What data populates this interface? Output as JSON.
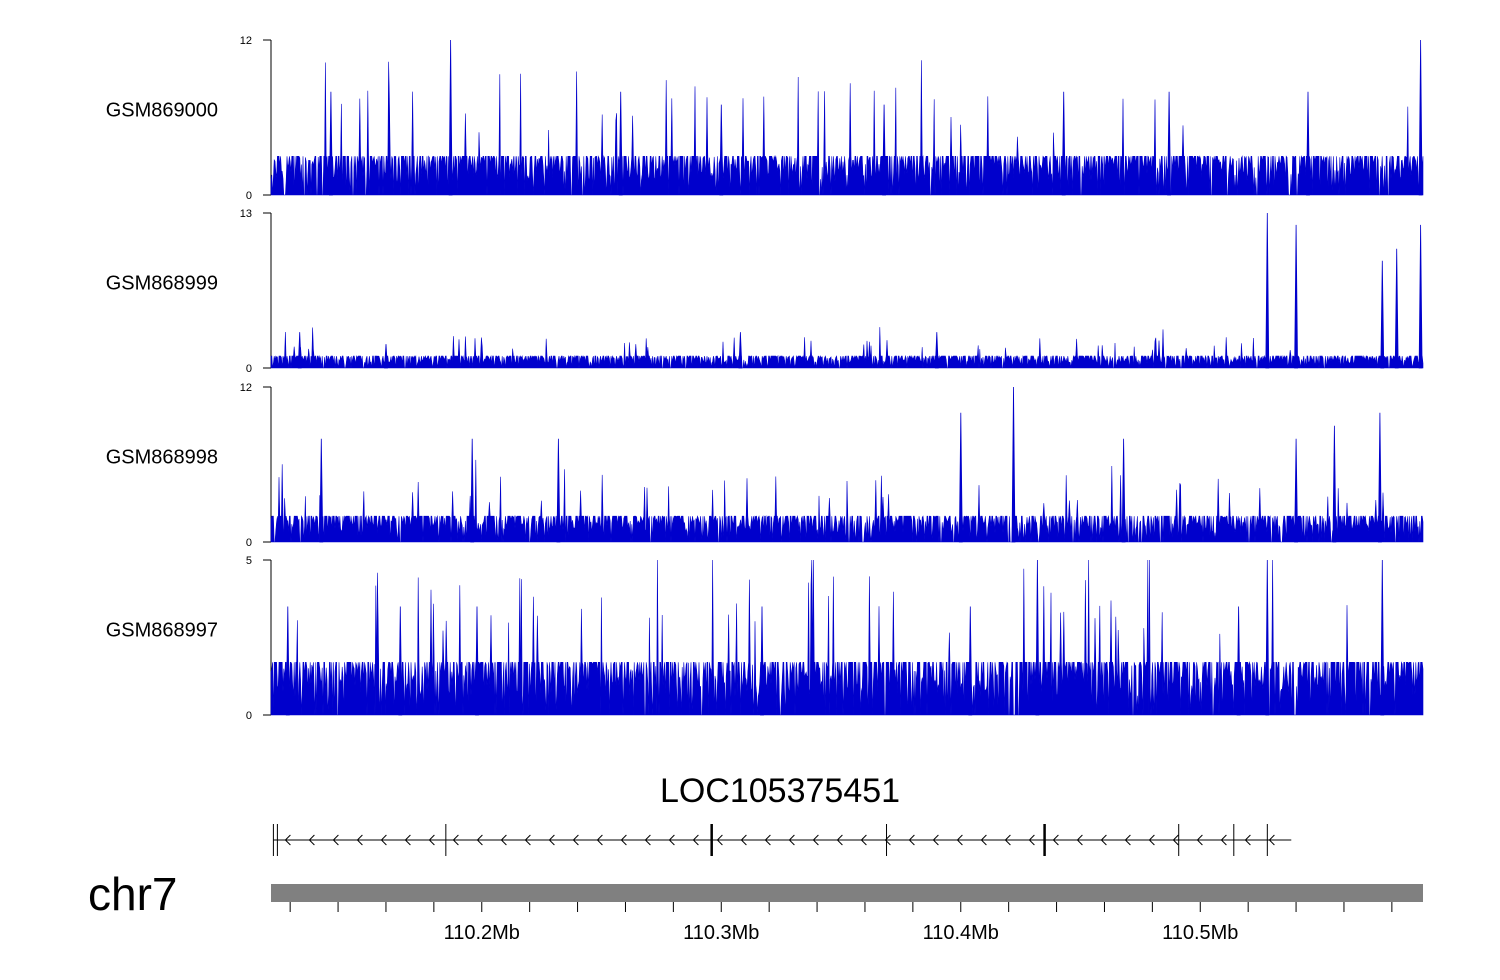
{
  "chart_data": {
    "type": "area",
    "title": "",
    "chromosome": "chr7",
    "genome_axis": {
      "range_mb": [
        110.112,
        110.593
      ],
      "tick_labels": [
        "110.2Mb",
        "110.3Mb",
        "110.4Mb",
        "110.5Mb"
      ],
      "tick_values_mb": [
        110.2,
        110.3,
        110.4,
        110.5
      ],
      "minor_tick_step_mb": 0.02
    },
    "tracks": [
      {
        "name": "GSM869000",
        "ymax_label": "12",
        "ymin_label": "0",
        "ylim": [
          0,
          12
        ],
        "baseline": 3,
        "color": "#0000cc",
        "peaks": [
          [
            110.137,
            8
          ],
          [
            110.187,
            12
          ],
          [
            110.258,
            8
          ],
          [
            110.3,
            7
          ],
          [
            110.368,
            7
          ],
          [
            110.443,
            8
          ],
          [
            110.487,
            8
          ],
          [
            110.545,
            8
          ],
          [
            110.592,
            12
          ]
        ]
      },
      {
        "name": "GSM868999",
        "ymax_label": "13",
        "ymin_label": "0",
        "ylim": [
          0,
          13
        ],
        "baseline": 1,
        "color": "#0000cc",
        "peaks": [
          [
            110.124,
            3
          ],
          [
            110.16,
            2
          ],
          [
            110.308,
            3
          ],
          [
            110.39,
            3
          ],
          [
            110.528,
            13
          ],
          [
            110.54,
            12
          ],
          [
            110.576,
            9
          ],
          [
            110.582,
            10
          ],
          [
            110.592,
            12
          ]
        ]
      },
      {
        "name": "GSM868998",
        "ymax_label": "12",
        "ymin_label": "0",
        "ylim": [
          0,
          12
        ],
        "baseline": 2,
        "color": "#0000cc",
        "peaks": [
          [
            110.133,
            8
          ],
          [
            110.196,
            8
          ],
          [
            110.232,
            8
          ],
          [
            110.4,
            10
          ],
          [
            110.422,
            12
          ],
          [
            110.468,
            8
          ],
          [
            110.54,
            8
          ],
          [
            110.556,
            9
          ],
          [
            110.575,
            10
          ]
        ]
      },
      {
        "name": "GSM868997",
        "ymax_label": "5",
        "ymin_label": "0",
        "ylim": [
          0,
          5
        ],
        "baseline": 1.7,
        "color": "#0000cc",
        "peaks": [
          [
            110.119,
            3.5
          ],
          [
            110.166,
            3.5
          ],
          [
            110.198,
            3.5
          ],
          [
            110.317,
            3.5
          ],
          [
            110.404,
            3.5
          ],
          [
            110.432,
            5
          ],
          [
            110.516,
            3.5
          ],
          [
            110.528,
            5
          ],
          [
            110.576,
            5
          ]
        ]
      }
    ],
    "gene": {
      "name": "LOC105375451",
      "strand": "-",
      "start_mb": 110.113,
      "end_mb": 110.538,
      "exon_positions_mb": [
        110.113,
        110.185,
        110.296,
        110.369,
        110.435,
        110.491,
        110.514,
        110.528
      ]
    },
    "colors": {
      "signal": "#0000cc",
      "axis": "#000000",
      "ideogram": "#808080"
    }
  }
}
